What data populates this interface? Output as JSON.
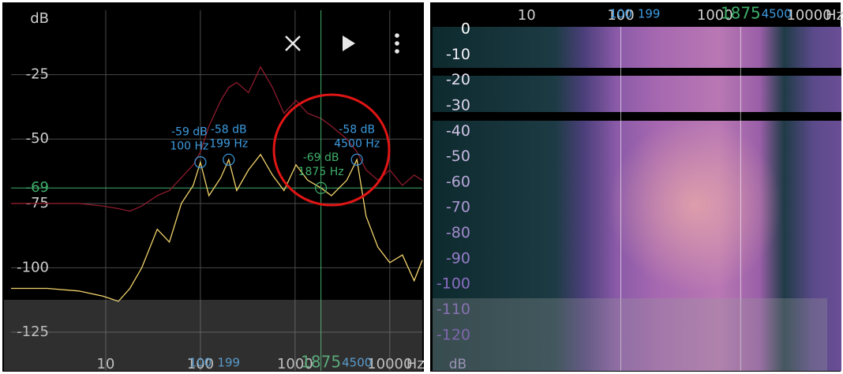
{
  "chart_data": [
    {
      "type": "line",
      "y_label": "dB",
      "x_unit": "Hz",
      "xscale": "log",
      "grid": true,
      "xlim": [
        1,
        22050
      ],
      "ylim": [
        -140,
        0
      ],
      "xticks": [
        10,
        100,
        1000,
        10000
      ],
      "yticks": [
        -25,
        -50,
        -75,
        -100,
        -125
      ],
      "x": [
        1,
        2.4,
        5.2,
        9.3,
        13.6,
        18,
        24,
        35,
        47,
        63,
        84,
        100,
        123,
        164,
        199,
        242,
        322,
        432,
        577,
        764,
        1022,
        1359,
        1875,
        2420,
        3520,
        4500,
        5620,
        7500,
        10000,
        13600,
        18100,
        22050
      ],
      "series": [
        {
          "color": "#8c1c2c",
          "values": [
            -75,
            -75,
            -75,
            -76,
            -77,
            -78,
            -76,
            -72,
            -70,
            -65,
            -60,
            -55,
            -45,
            -35,
            -30,
            -28,
            -32,
            -22,
            -30,
            -40,
            -35,
            -40,
            -42,
            -45,
            -50,
            -55,
            -62,
            -66,
            -62,
            -68,
            -64,
            -66
          ]
        },
        {
          "color": "#f2d36b",
          "values": [
            -108,
            -108,
            -109,
            -111,
            -113,
            -108,
            -100,
            -85,
            -90,
            -75,
            -68,
            -59,
            -72,
            -65,
            -58,
            -70,
            -62,
            -56,
            -64,
            -70,
            -60,
            -66,
            -69,
            -72,
            -66,
            -58,
            -80,
            -92,
            -98,
            -95,
            -105,
            -97
          ]
        }
      ],
      "y_marker": {
        "value": -69,
        "label": "-69"
      },
      "markers": [
        {
          "x": 100,
          "y": -59,
          "label": "-59 dB",
          "sublabel": "100 Hz",
          "color": "#3d9be0"
        },
        {
          "x": 199,
          "y": -58,
          "label": "-58 dB",
          "sublabel": "199 Hz",
          "color": "#3d9be0"
        },
        {
          "x": 1875,
          "y": -69,
          "label": "-69 dB",
          "sublabel": "1875 Hz",
          "color": "#3fae6a"
        },
        {
          "x": 4500,
          "y": -58,
          "label": "-58 dB",
          "sublabel": "4500 Hz",
          "color": "#3d9be0"
        }
      ]
    },
    {
      "type": "spectrogram",
      "y_label": "dB",
      "x_unit": "Hz",
      "xscale": "log",
      "xlim": [
        1,
        22050
      ],
      "ylim": [
        -134,
        9
      ],
      "xticks": [
        10,
        100,
        1000,
        10000
      ],
      "yticks": [
        0,
        -10,
        -20,
        -30,
        -40,
        -50,
        -60,
        -70,
        -80,
        -90,
        -100,
        -110,
        -120
      ],
      "markers": [
        {
          "x": 100,
          "color": "#3d9be0"
        },
        {
          "x": 199,
          "color": "#3d9be0"
        },
        {
          "x": 1875,
          "color": "#3fae6a"
        },
        {
          "x": 4500,
          "color": "#3d9be0"
        }
      ]
    }
  ]
}
